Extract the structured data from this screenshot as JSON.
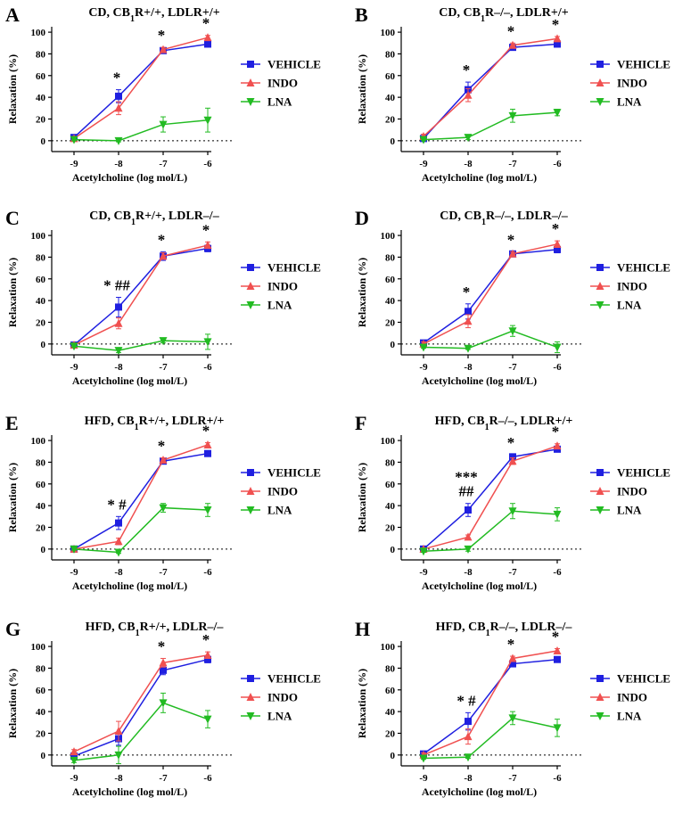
{
  "figure": {
    "colors": {
      "vehicle": "#1f1fe0",
      "indo": "#f05050",
      "lna": "#22bb22",
      "axis": "#000000"
    }
  },
  "chart_data": [
    {
      "type": "line",
      "panel_letter": "A",
      "title": "CD, CB₁R+/+, LDLR+/+",
      "xlabel": "Acetylcholine (log mol/L)",
      "ylabel": "Relaxation (%)",
      "x": [
        -9,
        -8,
        -7,
        -6
      ],
      "xlim": [
        -9.5,
        -5.7
      ],
      "ylim": [
        -10,
        105
      ],
      "yticks": [
        0,
        20,
        40,
        60,
        80,
        100
      ],
      "grid": false,
      "legend_position": "right",
      "series": [
        {
          "name": "VEHICLE",
          "values": [
            3,
            41,
            83,
            89
          ],
          "errors": [
            2,
            6,
            2,
            2
          ]
        },
        {
          "name": "INDO",
          "values": [
            2,
            30,
            84,
            95
          ],
          "errors": [
            2,
            6,
            2,
            2
          ]
        },
        {
          "name": "LNA",
          "values": [
            1,
            0,
            15,
            19
          ],
          "errors": [
            1,
            1,
            7,
            11
          ]
        }
      ],
      "annotations": [
        {
          "x": -8,
          "text": "*"
        },
        {
          "x": -7,
          "text": "*"
        },
        {
          "x": -6,
          "text": "*"
        }
      ]
    },
    {
      "type": "line",
      "panel_letter": "B",
      "title": "CD, CB₁R–/–, LDLR+/+",
      "xlabel": "Acetylcholine (log mol/L)",
      "ylabel": "Relaxation (%)",
      "x": [
        -9,
        -8,
        -7,
        -6
      ],
      "xlim": [
        -9.5,
        -5.7
      ],
      "ylim": [
        -10,
        105
      ],
      "yticks": [
        0,
        20,
        40,
        60,
        80,
        100
      ],
      "grid": false,
      "legend_position": "right",
      "series": [
        {
          "name": "VEHICLE",
          "values": [
            2,
            47,
            86,
            89
          ],
          "errors": [
            2,
            7,
            2,
            2
          ]
        },
        {
          "name": "INDO",
          "values": [
            4,
            42,
            88,
            94
          ],
          "errors": [
            2,
            6,
            2,
            2
          ]
        },
        {
          "name": "LNA",
          "values": [
            1,
            3,
            23,
            26
          ],
          "errors": [
            1,
            2,
            6,
            3
          ]
        }
      ],
      "annotations": [
        {
          "x": -8,
          "text": "*"
        },
        {
          "x": -7,
          "text": "*"
        },
        {
          "x": -6,
          "text": "*"
        }
      ]
    },
    {
      "type": "line",
      "panel_letter": "C",
      "title": "CD, CB₁R+/+, LDLR–/–",
      "xlabel": "Acetylcholine (log mol/L)",
      "ylabel": "Relaxation (%)",
      "x": [
        -9,
        -8,
        -7,
        -6
      ],
      "xlim": [
        -9.5,
        -5.7
      ],
      "ylim": [
        -10,
        105
      ],
      "yticks": [
        0,
        20,
        40,
        60,
        80,
        100
      ],
      "grid": false,
      "legend_position": "right",
      "series": [
        {
          "name": "VEHICLE",
          "values": [
            -1,
            34,
            81,
            88
          ],
          "errors": [
            2,
            9,
            4,
            3
          ]
        },
        {
          "name": "INDO",
          "values": [
            -1,
            19,
            81,
            91
          ],
          "errors": [
            2,
            5,
            3,
            3
          ]
        },
        {
          "name": "LNA",
          "values": [
            -2,
            -6,
            3,
            2
          ],
          "errors": [
            1,
            2,
            2,
            7
          ]
        }
      ],
      "annotations": [
        {
          "x": -8,
          "text": "* ##"
        },
        {
          "x": -7,
          "text": "*"
        },
        {
          "x": -6,
          "text": "*"
        }
      ]
    },
    {
      "type": "line",
      "panel_letter": "D",
      "title": "CD, CB₁R–/–, LDLR–/–",
      "xlabel": "Acetylcholine (log mol/L)",
      "ylabel": "Relaxation (%)",
      "x": [
        -9,
        -8,
        -7,
        -6
      ],
      "xlim": [
        -9.5,
        -5.7
      ],
      "ylim": [
        -10,
        105
      ],
      "yticks": [
        0,
        20,
        40,
        60,
        80,
        100
      ],
      "grid": false,
      "legend_position": "right",
      "series": [
        {
          "name": "VEHICLE",
          "values": [
            1,
            30,
            83,
            87
          ],
          "errors": [
            2,
            7,
            2,
            3
          ]
        },
        {
          "name": "INDO",
          "values": [
            0,
            21,
            83,
            92
          ],
          "errors": [
            2,
            6,
            2,
            3
          ]
        },
        {
          "name": "LNA",
          "values": [
            -3,
            -4,
            12,
            -3
          ],
          "errors": [
            1,
            1,
            5,
            5
          ]
        }
      ],
      "annotations": [
        {
          "x": -8,
          "text": "*"
        },
        {
          "x": -7,
          "text": "*"
        },
        {
          "x": -6,
          "text": "*"
        }
      ]
    },
    {
      "type": "line",
      "panel_letter": "E",
      "title": "HFD, CB₁R+/+, LDLR+/+",
      "xlabel": "Acetylcholine (log mol/L)",
      "ylabel": "Relaxation (%)",
      "x": [
        -9,
        -8,
        -7,
        -6
      ],
      "xlim": [
        -9.5,
        -5.7
      ],
      "ylim": [
        -10,
        105
      ],
      "yticks": [
        0,
        20,
        40,
        60,
        80,
        100
      ],
      "grid": false,
      "legend_position": "right",
      "series": [
        {
          "name": "VEHICLE",
          "values": [
            0,
            24,
            81,
            88
          ],
          "errors": [
            1,
            6,
            2,
            2
          ]
        },
        {
          "name": "INDO",
          "values": [
            0,
            7,
            82,
            96
          ],
          "errors": [
            1,
            3,
            2,
            2
          ]
        },
        {
          "name": "LNA",
          "values": [
            0,
            -3,
            38,
            36
          ],
          "errors": [
            1,
            1,
            4,
            6
          ]
        }
      ],
      "annotations": [
        {
          "x": -8,
          "text": "* #"
        },
        {
          "x": -7,
          "text": "*"
        },
        {
          "x": -6,
          "text": "*"
        }
      ]
    },
    {
      "type": "line",
      "panel_letter": "F",
      "title": "HFD, CB₁R–/–, LDLR+/+",
      "xlabel": "Acetylcholine (log mol/L)",
      "ylabel": "Relaxation (%)",
      "x": [
        -9,
        -8,
        -7,
        -6
      ],
      "xlim": [
        -9.5,
        -5.7
      ],
      "ylim": [
        -10,
        105
      ],
      "yticks": [
        0,
        20,
        40,
        60,
        80,
        100
      ],
      "grid": false,
      "legend_position": "right",
      "series": [
        {
          "name": "VEHICLE",
          "values": [
            0,
            36,
            85,
            92
          ],
          "errors": [
            1,
            6,
            2,
            2
          ]
        },
        {
          "name": "INDO",
          "values": [
            0,
            11,
            81,
            95
          ],
          "errors": [
            1,
            2,
            3,
            2
          ]
        },
        {
          "name": "LNA",
          "values": [
            -2,
            0,
            35,
            32
          ],
          "errors": [
            1,
            2,
            7,
            6
          ]
        }
      ],
      "annotations": [
        {
          "x": -8,
          "text": "***"
        },
        {
          "x": -8,
          "text": "##"
        },
        {
          "x": -7,
          "text": "*"
        },
        {
          "x": -6,
          "text": "*"
        }
      ]
    },
    {
      "type": "line",
      "panel_letter": "G",
      "title": "HFD, CB₁R+/+, LDLR–/–",
      "xlabel": "Acetylcholine (log mol/L)",
      "ylabel": "Relaxation (%)",
      "x": [
        -9,
        -8,
        -7,
        -6
      ],
      "xlim": [
        -9.5,
        -5.7
      ],
      "ylim": [
        -10,
        105
      ],
      "yticks": [
        0,
        20,
        40,
        60,
        80,
        100
      ],
      "grid": false,
      "legend_position": "right",
      "series": [
        {
          "name": "VEHICLE",
          "values": [
            -1,
            15,
            78,
            88
          ],
          "errors": [
            2,
            6,
            4,
            3
          ]
        },
        {
          "name": "INDO",
          "values": [
            3,
            22,
            85,
            92
          ],
          "errors": [
            2,
            9,
            4,
            3
          ]
        },
        {
          "name": "LNA",
          "values": [
            -5,
            0,
            48,
            33
          ],
          "errors": [
            2,
            8,
            9,
            8
          ]
        }
      ],
      "annotations": [
        {
          "x": -7,
          "text": "*"
        },
        {
          "x": -6,
          "text": "*"
        }
      ]
    },
    {
      "type": "line",
      "panel_letter": "H",
      "title": "HFD, CB₁R–/–, LDLR–/–",
      "xlabel": "Acetylcholine (log mol/L)",
      "ylabel": "Relaxation (%)",
      "x": [
        -9,
        -8,
        -7,
        -6
      ],
      "xlim": [
        -9.5,
        -5.7
      ],
      "ylim": [
        -10,
        105
      ],
      "yticks": [
        0,
        20,
        40,
        60,
        80,
        100
      ],
      "grid": false,
      "legend_position": "right",
      "series": [
        {
          "name": "VEHICLE",
          "values": [
            1,
            31,
            84,
            88
          ],
          "errors": [
            2,
            8,
            2,
            2
          ]
        },
        {
          "name": "INDO",
          "values": [
            0,
            17,
            89,
            96
          ],
          "errors": [
            2,
            7,
            2,
            2
          ]
        },
        {
          "name": "LNA",
          "values": [
            -3,
            -2,
            34,
            25
          ],
          "errors": [
            1,
            1,
            6,
            8
          ]
        }
      ],
      "annotations": [
        {
          "x": -8,
          "text": "* #"
        },
        {
          "x": -7,
          "text": "*"
        },
        {
          "x": -6,
          "text": "*"
        }
      ]
    }
  ]
}
